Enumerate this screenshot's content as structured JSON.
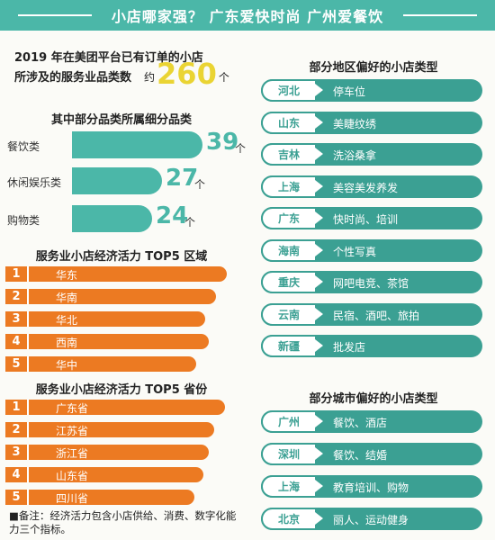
{
  "header": {
    "title": "小店哪家强？ 广东爱快时尚 广州爱餐饮"
  },
  "intro": {
    "line1": "2019 年在美团平台已有订单的小店",
    "line2": "所涉及的服务业品类数",
    "approx": "约",
    "number": "260",
    "unit": "个"
  },
  "categories": {
    "title": "其中部分品类所属细分品类",
    "items": [
      {
        "label": "餐饮类",
        "value": 39,
        "unit": "个"
      },
      {
        "label": "休闲娱乐类",
        "value": 27,
        "unit": "个"
      },
      {
        "label": "购物类",
        "value": 24,
        "unit": "个"
      }
    ]
  },
  "top_regions": {
    "title": "服务业小店经济活力 TOP5 区域",
    "items": [
      {
        "rank": "1",
        "label": "华东"
      },
      {
        "rank": "2",
        "label": "华南"
      },
      {
        "rank": "3",
        "label": "华北"
      },
      {
        "rank": "4",
        "label": "西南"
      },
      {
        "rank": "5",
        "label": "华中"
      }
    ]
  },
  "top_provinces": {
    "title": "服务业小店经济活力 TOP5 省份",
    "items": [
      {
        "rank": "1",
        "label": "广东省"
      },
      {
        "rank": "2",
        "label": "江苏省"
      },
      {
        "rank": "3",
        "label": "浙江省"
      },
      {
        "rank": "4",
        "label": "山东省"
      },
      {
        "rank": "5",
        "label": "四川省"
      }
    ]
  },
  "note": "■备注：经济活力包含小店供给、消费、数字化能力三个指标。",
  "regions": {
    "title": "部分地区偏好的小店类型",
    "items": [
      {
        "place": "河北",
        "type": "停车位"
      },
      {
        "place": "山东",
        "type": "美睫纹绣"
      },
      {
        "place": "吉林",
        "type": "洗浴桑拿"
      },
      {
        "place": "上海",
        "type": "美容美发养发"
      },
      {
        "place": "广东",
        "type": "快时尚、培训"
      },
      {
        "place": "海南",
        "type": "个性写真"
      },
      {
        "place": "重庆",
        "type": "网吧电竞、茶馆"
      },
      {
        "place": "云南",
        "type": "民宿、酒吧、旅拍"
      },
      {
        "place": "新疆",
        "type": "批发店"
      }
    ]
  },
  "cities": {
    "title": "部分城市偏好的小店类型",
    "items": [
      {
        "place": "广州",
        "type": "餐饮、酒店"
      },
      {
        "place": "深圳",
        "type": "餐饮、结婚"
      },
      {
        "place": "上海",
        "type": "教育培训、购物"
      },
      {
        "place": "北京",
        "type": "丽人、运动健身"
      }
    ]
  },
  "colors": {
    "teal": "#4bb7a8",
    "dark_teal": "#3ba093",
    "orange": "#ec7a22",
    "yellow": "#ead433"
  }
}
